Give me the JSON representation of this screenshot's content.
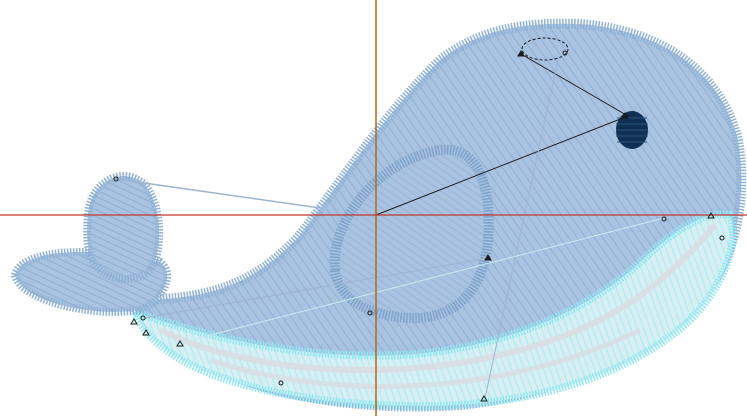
{
  "app": {
    "view": "embroidery-design-canvas"
  },
  "design": {
    "subject": "whale",
    "colors": {
      "body_fill": "#a9c2e0",
      "body_stitch": "#8fb1d6",
      "belly_fill": "#d7eef2",
      "belly_stitch": "#8fe8f2",
      "eye": "#0f2f55",
      "crosshair_vertical": "#b06a1c",
      "crosshair_horizontal": "#c0392b",
      "guide_dark": "#1a1a1a",
      "guide_light": "#9fb5cf"
    }
  },
  "tools": {
    "crosshair": "visible",
    "stitch_path_nodes": "visible"
  }
}
